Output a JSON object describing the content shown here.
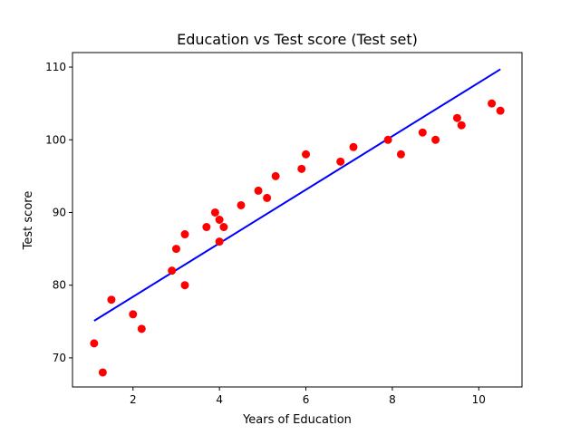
{
  "chart_data": {
    "type": "scatter",
    "title": "Education vs Test score (Test set)",
    "xlabel": "Years of Education",
    "ylabel": "Test score",
    "xlim": [
      0.6,
      11.0
    ],
    "ylim": [
      66,
      112
    ],
    "xticks": [
      2,
      4,
      6,
      8,
      10
    ],
    "yticks": [
      70,
      80,
      90,
      100,
      110
    ],
    "grid": false,
    "points_color": "#ff0000",
    "line_color": "#0000ff",
    "points": [
      {
        "x": 1.1,
        "y": 72
      },
      {
        "x": 1.3,
        "y": 68
      },
      {
        "x": 1.5,
        "y": 78
      },
      {
        "x": 2.0,
        "y": 76
      },
      {
        "x": 2.2,
        "y": 74
      },
      {
        "x": 2.9,
        "y": 82
      },
      {
        "x": 3.0,
        "y": 85
      },
      {
        "x": 3.2,
        "y": 87
      },
      {
        "x": 3.2,
        "y": 80
      },
      {
        "x": 3.7,
        "y": 88
      },
      {
        "x": 3.9,
        "y": 90
      },
      {
        "x": 4.0,
        "y": 89
      },
      {
        "x": 4.0,
        "y": 86
      },
      {
        "x": 4.1,
        "y": 88
      },
      {
        "x": 4.5,
        "y": 91
      },
      {
        "x": 4.9,
        "y": 93
      },
      {
        "x": 5.1,
        "y": 92
      },
      {
        "x": 5.3,
        "y": 95
      },
      {
        "x": 5.9,
        "y": 96
      },
      {
        "x": 6.0,
        "y": 98
      },
      {
        "x": 6.8,
        "y": 97
      },
      {
        "x": 7.1,
        "y": 99
      },
      {
        "x": 7.9,
        "y": 100
      },
      {
        "x": 8.2,
        "y": 98
      },
      {
        "x": 8.7,
        "y": 101
      },
      {
        "x": 9.0,
        "y": 100
      },
      {
        "x": 9.5,
        "y": 103
      },
      {
        "x": 9.6,
        "y": 102
      },
      {
        "x": 10.3,
        "y": 105
      },
      {
        "x": 10.5,
        "y": 104
      }
    ],
    "fit_line": {
      "x": [
        1.1,
        10.5
      ],
      "y": [
        75.1,
        109.7
      ]
    }
  }
}
